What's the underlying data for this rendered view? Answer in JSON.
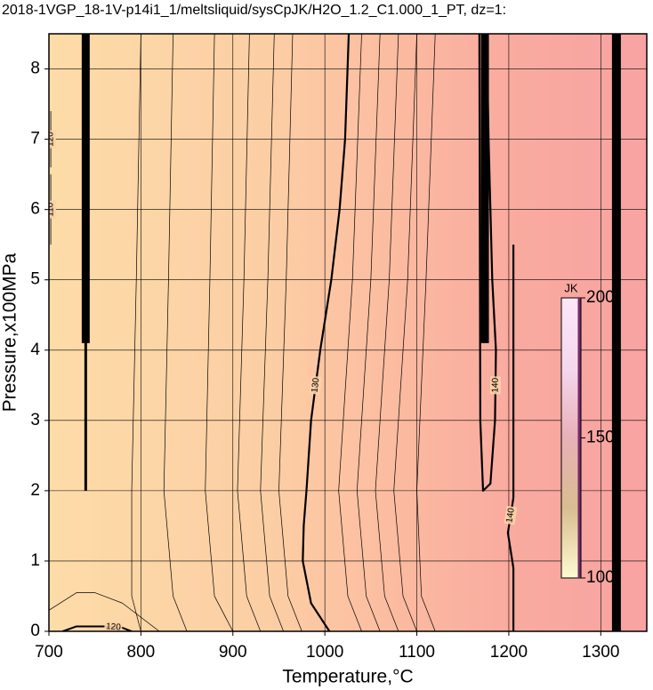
{
  "chart_data": {
    "type": "contour",
    "title": "2018-1VGP_18-1V-p14i1_1/meltsliquid/sysCpJK/H2O_1.2_C1.000_1_PT, dz=1:",
    "x_label": "Temperature,°C",
    "y_label": "Pressure,x100MPa",
    "xlim": [
      700,
      1350
    ],
    "ylim": [
      0,
      8.5
    ],
    "xticks": [
      700,
      800,
      900,
      1000,
      1100,
      1200,
      1300
    ],
    "yticks": [
      0,
      1,
      2,
      3,
      4,
      5,
      6,
      7,
      8
    ],
    "grid": true,
    "background": [
      {
        "x": 700,
        "color": "#fddca8"
      },
      {
        "x": 950,
        "color": "#fccda4"
      },
      {
        "x": 1100,
        "color": "#fbb8a0"
      },
      {
        "x": 1200,
        "color": "#f9ab9f"
      },
      {
        "x": 1350,
        "color": "#f8a3a2"
      }
    ],
    "contours": [
      {
        "level": 130,
        "width": 2.2,
        "x": [
          1005,
          985,
          976,
          977,
          980,
          985,
          995,
          1007,
          1016,
          1022,
          1026
        ],
        "y": [
          0,
          0.4,
          1,
          1.5,
          2,
          3,
          4,
          5,
          6,
          7,
          8.5
        ]
      },
      {
        "level": 140,
        "width": 2.2,
        "x": [
          1205,
          1205,
          1199,
          1205,
          1205,
          1205
        ],
        "y": [
          0,
          0.9,
          1.4,
          1.9,
          3,
          5.5
        ]
      },
      {
        "level": 140,
        "width": 2.2,
        "x": [
          1168,
          1169,
          1172,
          1180,
          1185,
          1186,
          1182,
          1178,
          1176
        ],
        "y": [
          8.5,
          3,
          2,
          2.1,
          3,
          4,
          5,
          7,
          8.5
        ]
      },
      {
        "level": 120,
        "width": 2,
        "x": [
          715,
          730,
          760,
          780,
          790
        ],
        "y": [
          0,
          0.07,
          0.07,
          0.05,
          0
        ]
      },
      {
        "level": 110,
        "width": 0.8,
        "x": [
          702,
          702
        ],
        "y": [
          5.5,
          6.5
        ]
      },
      {
        "level": 120,
        "width": 0.8,
        "x": [
          702,
          702
        ],
        "y": [
          6.6,
          7.4
        ]
      },
      {
        "width": 3,
        "x": [
          740,
          740,
          740
        ],
        "y": [
          2,
          3,
          4.1
        ]
      },
      {
        "width": 9,
        "x": [
          740,
          740,
          740
        ],
        "y": [
          4.1,
          6,
          8.5
        ]
      },
      {
        "width": 9,
        "x": [
          1174,
          1174,
          1174
        ],
        "y": [
          4.1,
          6,
          8.5
        ]
      },
      {
        "width": 10,
        "x": [
          1317,
          1317,
          1317
        ],
        "y": [
          0,
          4,
          8.5
        ]
      },
      {
        "width": 0.7,
        "x": [
          700,
          730,
          750,
          780,
          820
        ],
        "y": [
          0.3,
          0.55,
          0.55,
          0.4,
          0
        ]
      },
      {
        "width": 0.7,
        "x": [
          800,
          790,
          790,
          795,
          800
        ],
        "y": [
          0,
          0.5,
          2,
          5,
          8.5
        ]
      },
      {
        "width": 0.7,
        "x": [
          850,
          835,
          825,
          830,
          835
        ],
        "y": [
          0,
          0.5,
          2,
          5,
          8.5
        ]
      },
      {
        "width": 0.7,
        "x": [
          900,
          880,
          870,
          875,
          880
        ],
        "y": [
          0,
          0.5,
          2,
          5,
          8.5
        ]
      },
      {
        "width": 0.7,
        "x": [
          930,
          915,
          905,
          912,
          918
        ],
        "y": [
          0,
          0.5,
          2,
          5,
          8.5
        ]
      },
      {
        "width": 0.7,
        "x": [
          955,
          940,
          930,
          938,
          945
        ],
        "y": [
          0,
          0.5,
          2,
          5,
          8.5
        ]
      },
      {
        "width": 0.7,
        "x": [
          975,
          960,
          950,
          958,
          965
        ],
        "y": [
          0,
          0.5,
          2,
          5,
          8.5
        ]
      },
      {
        "width": 0.7,
        "x": [
          1040,
          1025,
          1015,
          1030,
          1040
        ],
        "y": [
          0,
          0.5,
          2,
          5,
          8.5
        ]
      },
      {
        "width": 0.7,
        "x": [
          1060,
          1045,
          1035,
          1050,
          1060
        ],
        "y": [
          0,
          0.5,
          2,
          5,
          8.5
        ]
      },
      {
        "width": 0.7,
        "x": [
          1080,
          1065,
          1055,
          1070,
          1080
        ],
        "y": [
          0,
          0.5,
          2,
          5,
          8.5
        ]
      },
      {
        "width": 0.7,
        "x": [
          1100,
          1085,
          1075,
          1090,
          1100
        ],
        "y": [
          0,
          0.5,
          2,
          5,
          8.5
        ]
      },
      {
        "width": 0.7,
        "x": [
          1120,
          1105,
          1100,
          1110,
          1120
        ],
        "y": [
          0,
          0.5,
          2,
          5,
          8.5
        ]
      }
    ],
    "colorbar": {
      "label": "JK",
      "clim": [
        100,
        200
      ],
      "ticks": [
        100,
        150,
        200
      ],
      "colors": [
        "#fdfbd0",
        "#d9bd90",
        "#e8b0b8",
        "#f4d8ec",
        "#fce8f8"
      ]
    }
  }
}
